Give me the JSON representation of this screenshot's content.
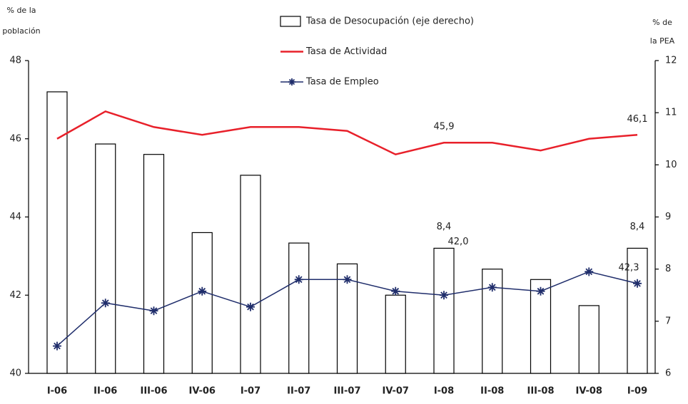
{
  "chart_data": {
    "type": "bar-line",
    "y_label": [
      "% de la",
      "población"
    ],
    "y2_label": [
      "% de",
      "la PEA"
    ],
    "categories": [
      "I-06",
      "II-06",
      "III-06",
      "IV-06",
      "I-07",
      "II-07",
      "III-07",
      "IV-07",
      "I-08",
      "II-08",
      "III-08",
      "IV-08",
      "I-09"
    ],
    "ylim": [
      40,
      48
    ],
    "yticks": [
      40,
      42,
      44,
      46,
      48
    ],
    "y2lim": [
      6,
      12
    ],
    "y2ticks": [
      6,
      7,
      8,
      9,
      10,
      11,
      12
    ],
    "series": [
      {
        "name": "Tasa de Desocupación (eje derecho)",
        "type": "bar",
        "axis": "y2",
        "color": "#000000",
        "values": [
          11.4,
          10.4,
          10.2,
          8.7,
          9.8,
          8.5,
          8.1,
          7.5,
          8.4,
          8.0,
          7.8,
          7.3,
          8.4
        ],
        "value_labels": [
          null,
          null,
          null,
          null,
          null,
          null,
          null,
          null,
          "8,4",
          null,
          null,
          null,
          "8,4"
        ]
      },
      {
        "name": "Tasa de Actividad",
        "type": "line",
        "color": "#e8202a",
        "values": [
          46.0,
          46.7,
          46.3,
          46.1,
          46.3,
          46.3,
          46.2,
          45.6,
          45.9,
          45.9,
          45.7,
          46.0,
          46.1
        ],
        "value_labels": [
          null,
          null,
          null,
          null,
          null,
          null,
          null,
          null,
          "45,9",
          null,
          null,
          null,
          "46,1"
        ]
      },
      {
        "name": "Tasa de Empleo",
        "type": "line-marker",
        "color": "#1f2d6b",
        "values": [
          40.7,
          41.8,
          41.6,
          42.1,
          41.7,
          42.4,
          42.4,
          42.1,
          42.0,
          42.2,
          42.1,
          42.6,
          42.3
        ],
        "value_labels": [
          null,
          null,
          null,
          null,
          null,
          null,
          null,
          null,
          "42,0",
          null,
          null,
          null,
          "42,3"
        ]
      }
    ]
  }
}
